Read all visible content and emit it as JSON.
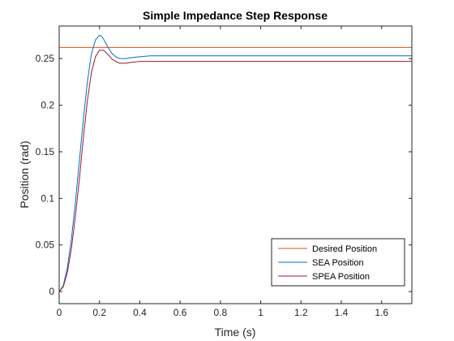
{
  "chart_data": {
    "type": "line",
    "title": "Simple Impedance Step Response",
    "xlabel": "Time (s)",
    "ylabel": "Position (rad)",
    "xlim": [
      0,
      1.75
    ],
    "ylim": [
      -0.013,
      0.285
    ],
    "xticks": [
      0,
      0.2,
      0.4,
      0.6,
      0.8,
      1,
      1.2,
      1.4,
      1.6
    ],
    "xtick_labels": [
      "0",
      "0.2",
      "0.4",
      "0.6",
      "0.8",
      "1",
      "1.2",
      "1.4",
      "1.6"
    ],
    "yticks": [
      0,
      0.05,
      0.1,
      0.15,
      0.2,
      0.25
    ],
    "ytick_labels": [
      "0",
      "0.05",
      "0.1",
      "0.15",
      "0.2",
      "0.25"
    ],
    "grid": false,
    "legend_position": "bottom-right",
    "series": [
      {
        "name": "Desired Position",
        "color": "#D95319",
        "x": [
          0,
          1.75
        ],
        "y": [
          0.262,
          0.262
        ]
      },
      {
        "name": "SEA Position",
        "color": "#0072BD",
        "x": [
          0,
          0.02,
          0.04,
          0.06,
          0.08,
          0.1,
          0.12,
          0.14,
          0.16,
          0.18,
          0.2,
          0.21,
          0.22,
          0.24,
          0.26,
          0.28,
          0.3,
          0.33,
          0.36,
          0.4,
          0.45,
          0.5,
          0.6,
          0.8,
          1.0,
          1.2,
          1.4,
          1.6,
          1.75
        ],
        "y": [
          0,
          0.006,
          0.025,
          0.055,
          0.095,
          0.14,
          0.185,
          0.225,
          0.255,
          0.27,
          0.275,
          0.274,
          0.271,
          0.263,
          0.256,
          0.252,
          0.25,
          0.25,
          0.251,
          0.252,
          0.253,
          0.253,
          0.253,
          0.253,
          0.253,
          0.253,
          0.253,
          0.253,
          0.253
        ]
      },
      {
        "name": "SPEA Position",
        "color": "#A2142F",
        "x": [
          0,
          0.02,
          0.04,
          0.06,
          0.08,
          0.1,
          0.12,
          0.14,
          0.16,
          0.18,
          0.2,
          0.22,
          0.24,
          0.26,
          0.28,
          0.3,
          0.33,
          0.36,
          0.4,
          0.45,
          0.5,
          0.6,
          0.8,
          1.0,
          1.2,
          1.4,
          1.6,
          1.75
        ],
        "y": [
          0,
          0.005,
          0.02,
          0.045,
          0.08,
          0.12,
          0.165,
          0.205,
          0.235,
          0.252,
          0.259,
          0.259,
          0.255,
          0.25,
          0.247,
          0.245,
          0.245,
          0.246,
          0.247,
          0.247,
          0.247,
          0.247,
          0.247,
          0.247,
          0.247,
          0.247,
          0.247,
          0.247
        ]
      }
    ]
  }
}
